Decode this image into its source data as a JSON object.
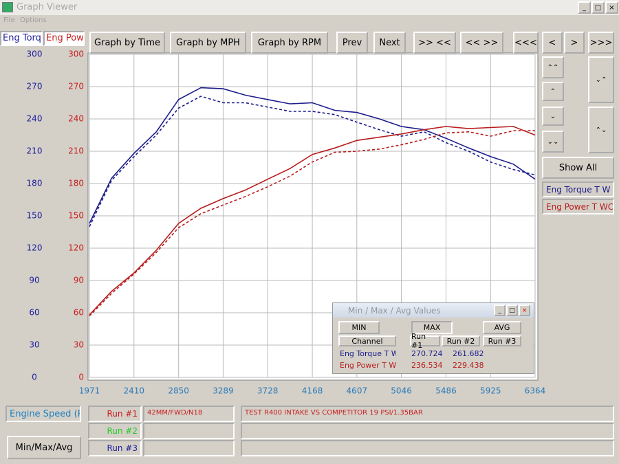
{
  "window": {
    "title": "Graph Viewer",
    "menu": [
      "File",
      "Options"
    ]
  },
  "toolbar": [
    "Graph by Time",
    "Graph by MPH",
    "Graph by RPM",
    "Prev",
    "Next",
    ">> <<",
    "<< >>",
    "<<<",
    "<",
    ">",
    ">>>"
  ],
  "axis_tabs": [
    "Eng Torq",
    "Eng Powe"
  ],
  "side_panel": {
    "show_all": "Show All"
  },
  "chart_data": {
    "type": "line",
    "x": [
      1971,
      2190,
      2410,
      2630,
      2850,
      3070,
      3289,
      3510,
      3728,
      3950,
      4168,
      4390,
      4607,
      4830,
      5046,
      5270,
      5486,
      5710,
      5925,
      6150,
      6364
    ],
    "xlim": [
      1971,
      6364
    ],
    "xticks": [
      1971,
      2410,
      2850,
      3289,
      3728,
      4168,
      4607,
      5046,
      5486,
      5925,
      6364
    ],
    "ylim": [
      0,
      300
    ],
    "yticks": [
      0,
      30,
      60,
      90,
      120,
      150,
      180,
      210,
      240,
      270,
      300
    ],
    "y2lim": [
      0,
      300
    ],
    "y2ticks": [
      0,
      30,
      60,
      90,
      120,
      150,
      180,
      210,
      240,
      270,
      300
    ],
    "grid": true,
    "series": [
      {
        "name": "Eng Torque T W",
        "color": "#1c1c8c",
        "values": [
          143,
          185,
          208,
          228,
          258,
          269,
          268,
          262,
          258,
          254,
          255,
          248,
          246,
          240,
          233,
          230,
          222,
          213,
          205,
          198,
          184
        ],
        "values_run2": [
          140,
          183,
          205,
          225,
          250,
          261,
          255,
          255,
          251,
          247,
          247,
          244,
          237,
          230,
          224,
          228,
          218,
          210,
          200,
          193,
          188
        ]
      },
      {
        "name": "Eng Power T WC",
        "color": "#b81c1c",
        "axis": "y2",
        "values": [
          58,
          80,
          97,
          118,
          143,
          157,
          166,
          174,
          184,
          194,
          207,
          213,
          220,
          223,
          226,
          230,
          233,
          231,
          232,
          233,
          225
        ],
        "values_run2": [
          57,
          78,
          96,
          116,
          139,
          152,
          160,
          168,
          177,
          187,
          200,
          209,
          210,
          212,
          216,
          221,
          227,
          228,
          224,
          229,
          229
        ]
      }
    ]
  },
  "minmax": {
    "title": "Min / Max / Avg Values",
    "buttons": [
      "MIN",
      "MAX",
      "AVG"
    ],
    "headers": [
      "Channel",
      "Run #1",
      "Run #2",
      "Run #3"
    ],
    "rows": [
      [
        270.724,
        261.682
      ],
      [
        236.534,
        229.438
      ]
    ]
  },
  "bottom": {
    "x_channel": "Engine Speed (RI",
    "runs": [
      {
        "label": "Run #1",
        "color": "#c81c1c",
        "car": "42MM/FWD/N18",
        "note": "TEST R400 INTAKE VS COMPETITOR 19 PSI/1.35BAR"
      },
      {
        "label": "Run #2",
        "color": "#22c822"
      },
      {
        "label": "Run #3",
        "color": "#1c1c9c"
      }
    ],
    "button": "Min/Max/Avg"
  }
}
